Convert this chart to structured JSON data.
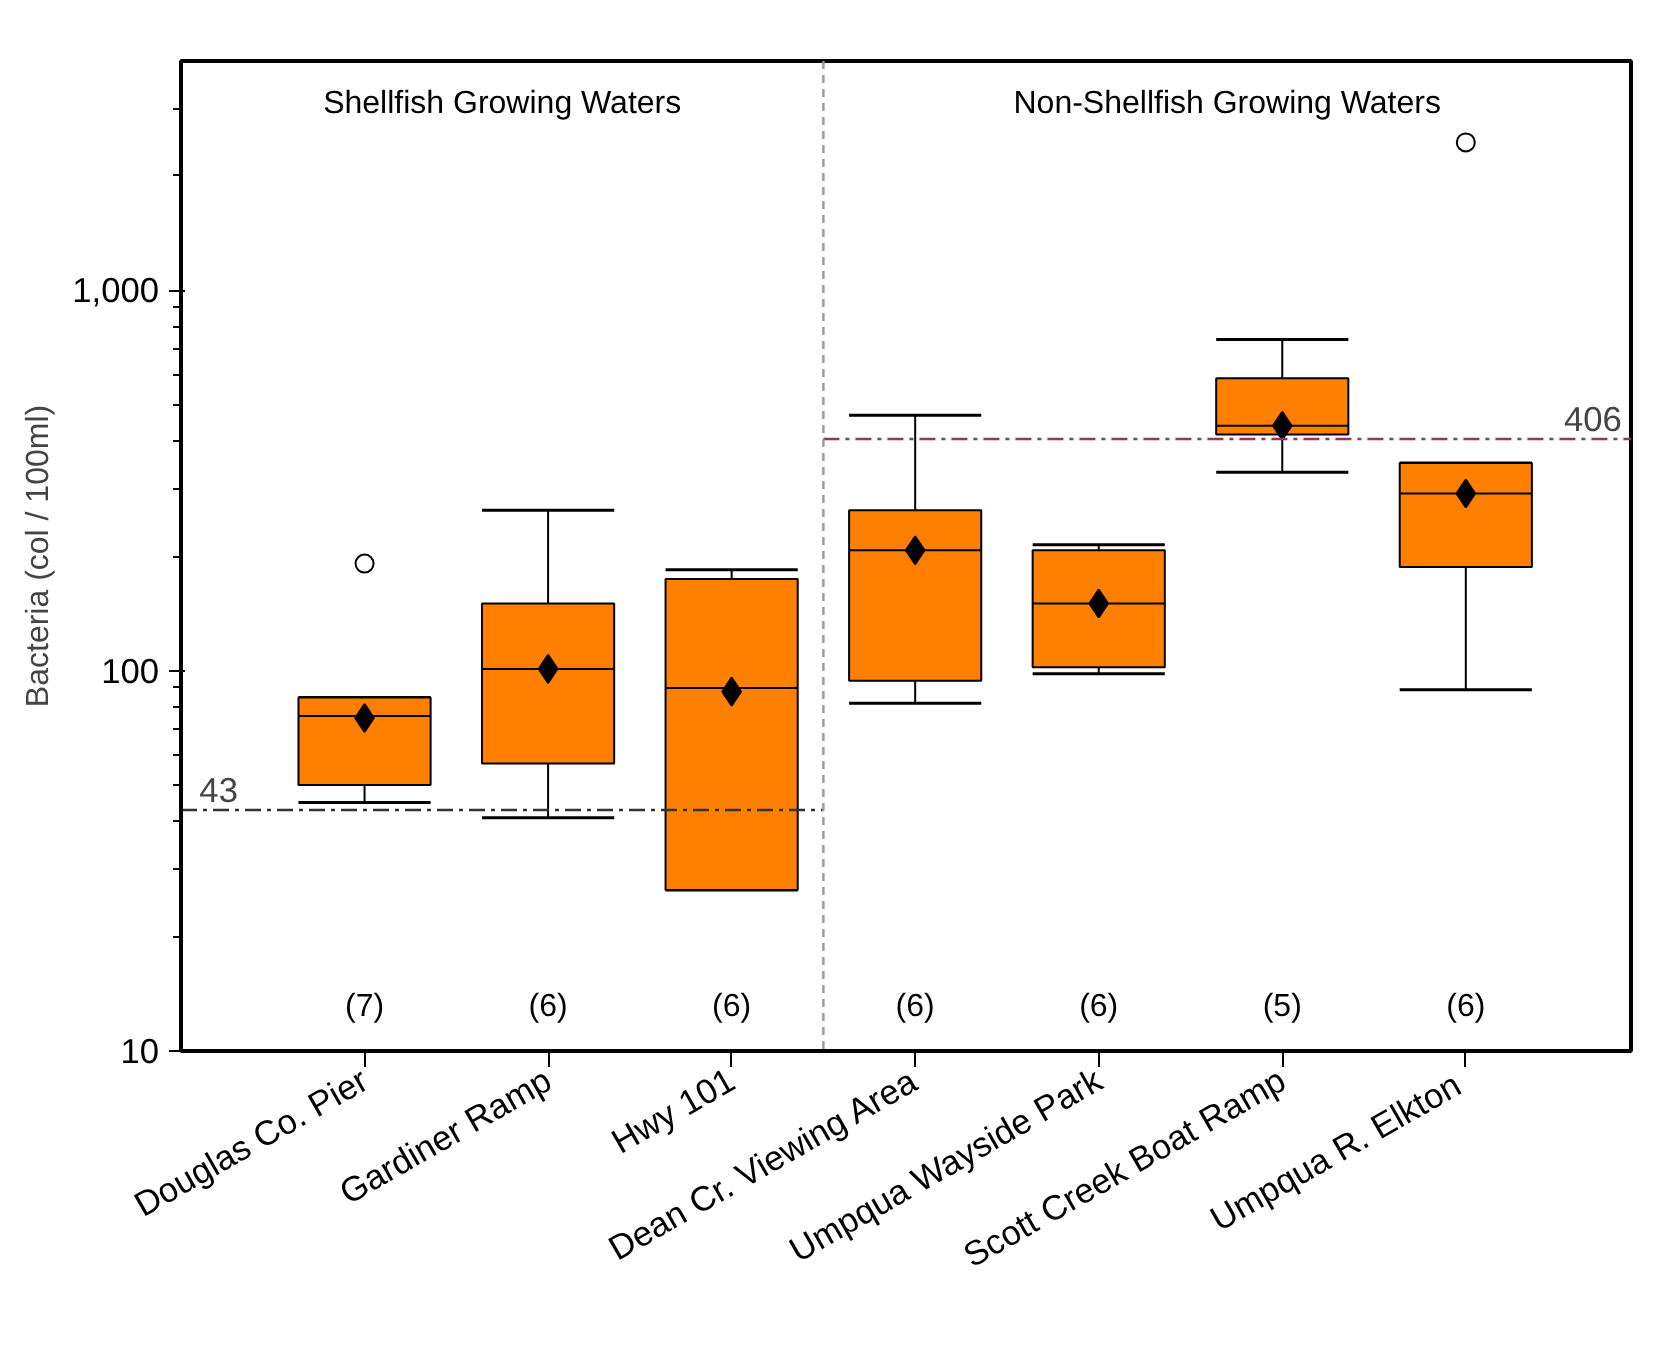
{
  "chart_data": {
    "type": "box",
    "ylabel": "Bacteria (col / 100ml)",
    "categories": [
      "Douglas Co. Pier",
      "Gardiner Ramp",
      "Hwy 101",
      "Dean Cr. Viewing Area",
      "Umpqua Wayside Park",
      "Scott Creek Boat Ramp",
      "Umpqua R.  Elkton"
    ],
    "series": [
      {
        "color": "#ff8000",
        "boxes": [
          {
            "low": 45,
            "q1": 50,
            "median": 76,
            "q3": 85,
            "high": 85,
            "mean": 75,
            "outliers": [
              191
            ]
          },
          {
            "low": 41,
            "q1": 57,
            "median": 101,
            "q3": 150,
            "high": 264,
            "mean": 101
          },
          {
            "low": 26.5,
            "q1": 26.5,
            "median": 90,
            "q3": 174,
            "high": 184,
            "mean": 88
          },
          {
            "low": 82,
            "q1": 94,
            "median": 207,
            "q3": 264,
            "high": 469,
            "mean": 207
          },
          {
            "low": 98,
            "q1": 102,
            "median": 150,
            "q3": 207,
            "high": 214,
            "mean": 150
          },
          {
            "low": 332,
            "q1": 417,
            "median": 440,
            "q3": 586,
            "high": 741,
            "mean": 440
          },
          {
            "low": 89,
            "q1": 187,
            "median": 292,
            "q3": 351,
            "high": 351,
            "mean": 292,
            "outliers": [
              2444
            ]
          }
        ]
      }
    ],
    "log": true,
    "ylim": [
      10,
      4000
    ],
    "yticks": [
      {
        "value": 10,
        "label": "10"
      },
      {
        "value": 100,
        "label": "100"
      },
      {
        "value": 1000,
        "label": "1,000"
      }
    ],
    "marker": "diamond",
    "grid": false,
    "ref_lines": [
      {
        "axis": "y",
        "value": 43,
        "label": "43",
        "color": "#333333",
        "line_style": "dashdot"
      },
      {
        "axis": "y",
        "value": 406,
        "label": "406",
        "color": "#993366",
        "line_style": "dashdot"
      }
    ],
    "annotations": [
      "Shellfish Growing Waters",
      "Non-Shellfish Growing Waters",
      "(7)",
      "(6)",
      "(6)",
      "(6)",
      "(6)",
      "(5)",
      "(6)"
    ]
  }
}
